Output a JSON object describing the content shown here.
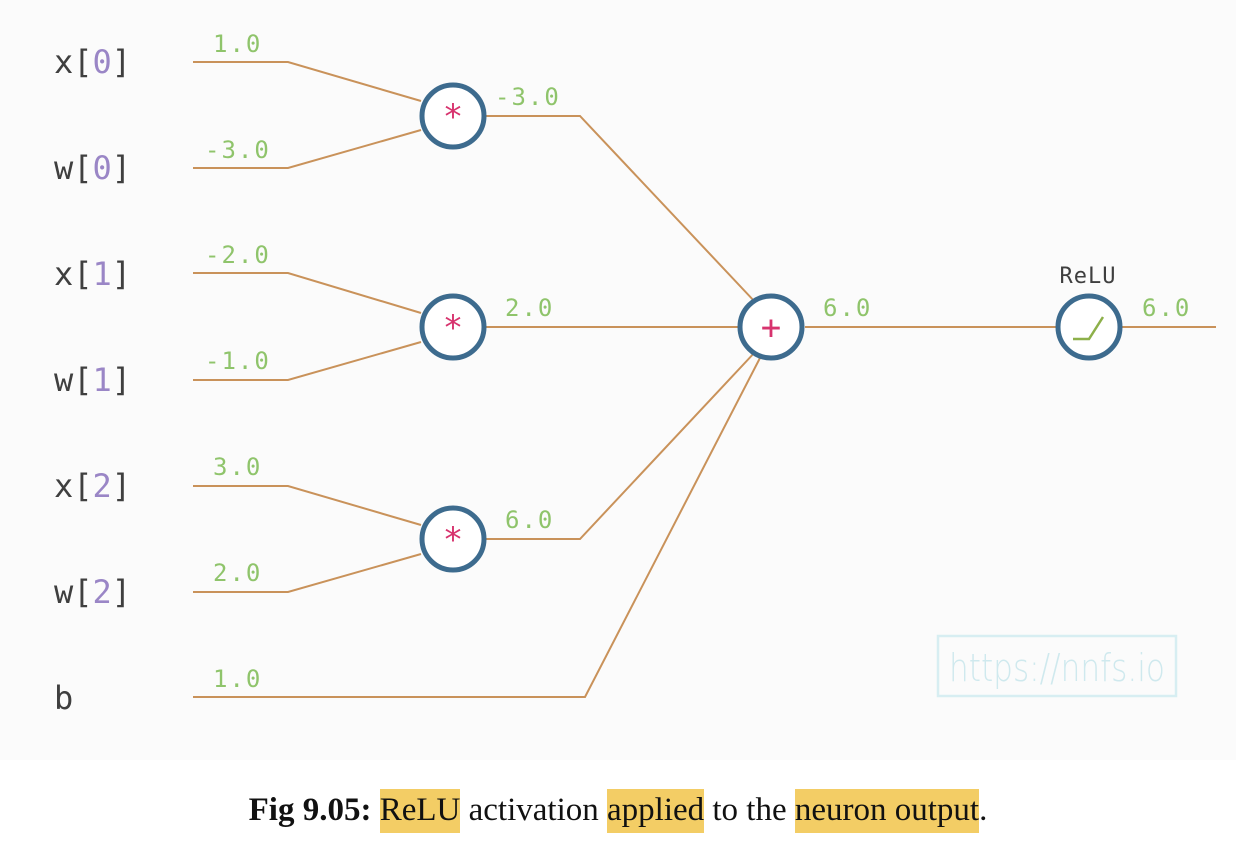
{
  "inputs": [
    {
      "name": "x",
      "index": "0",
      "value": "1.0"
    },
    {
      "name": "w",
      "index": "0",
      "value": "-3.0"
    },
    {
      "name": "x",
      "index": "1",
      "value": "-2.0"
    },
    {
      "name": "w",
      "index": "1",
      "value": "-1.0"
    },
    {
      "name": "x",
      "index": "2",
      "value": "3.0"
    },
    {
      "name": "w",
      "index": "2",
      "value": "2.0"
    },
    {
      "name": "b",
      "index": "",
      "value": "1.0"
    }
  ],
  "multiply_nodes": [
    {
      "symbol": "*",
      "output": "-3.0"
    },
    {
      "symbol": "*",
      "output": "2.0"
    },
    {
      "symbol": "*",
      "output": "6.0"
    }
  ],
  "sum_node": {
    "symbol": "+",
    "output": "6.0"
  },
  "relu_node": {
    "title": "ReLU",
    "output": "6.0"
  },
  "watermark": "https://nnfs.io",
  "caption": {
    "label": "Fig 9.05:",
    "parts": [
      "ReLU",
      "activation",
      "applied",
      "to the",
      "neuron output",
      "."
    ]
  },
  "colors": {
    "wire": "#c9925a",
    "node_ring": "#3d6b8e",
    "operator": "#d7336e",
    "value_text": "#8fc46b",
    "index_text": "#9a86c6",
    "highlight": "#f3cd65"
  }
}
